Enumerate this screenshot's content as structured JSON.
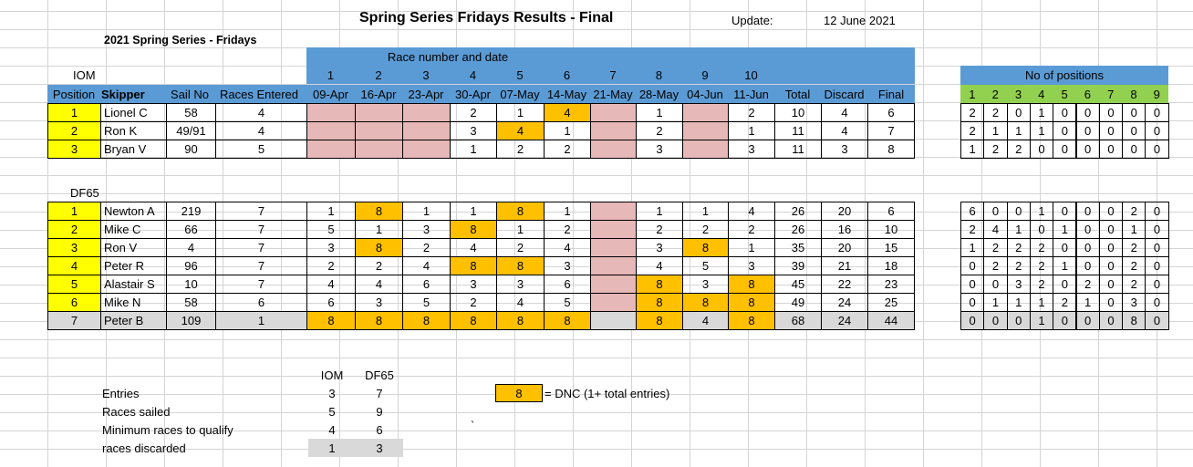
{
  "title": "Spring Series Fridays Results - Final",
  "update_label": "Update:",
  "update_value": "12 June 2021",
  "subtitle": "2021 Spring Series - Fridays",
  "race_header": "Race number and date",
  "race_numbers": [
    "1",
    "2",
    "3",
    "4",
    "5",
    "6",
    "7",
    "8",
    "9",
    "10"
  ],
  "race_dates": [
    "09-Apr",
    "16-Apr",
    "23-Apr",
    "30-Apr",
    "07-May",
    "14-May",
    "21-May",
    "28-May",
    "04-Jun",
    "11-Jun"
  ],
  "col_headers": {
    "position": "Position",
    "skipper": "Skipper",
    "sail_no": "Sail No",
    "races_entered": "Races Entered",
    "total": "Total",
    "discard": "Discard",
    "final": "Final"
  },
  "positions_header": "No of positions",
  "positions_cols": [
    "1",
    "2",
    "3",
    "4",
    "5",
    "6",
    "7",
    "8",
    "9"
  ],
  "iom": {
    "label": "IOM",
    "rows": [
      {
        "pos": "1",
        "skipper": "Lionel C",
        "sail": "58",
        "entered": "4",
        "races": [
          "",
          "",
          "",
          "2",
          "1",
          "4",
          "",
          "1",
          "",
          "2"
        ],
        "styles": [
          "p",
          "p",
          "p",
          "",
          "",
          "o",
          "p",
          "",
          "p",
          ""
        ],
        "total": "10",
        "discard": "4",
        "final": "6",
        "counts": [
          "2",
          "2",
          "0",
          "1",
          "0",
          "0",
          "0",
          "0",
          "0"
        ]
      },
      {
        "pos": "2",
        "skipper": "Ron K",
        "sail": "49/91",
        "entered": "4",
        "races": [
          "",
          "",
          "",
          "3",
          "4",
          "1",
          "",
          "2",
          "",
          "1"
        ],
        "styles": [
          "p",
          "p",
          "p",
          "",
          "o",
          "",
          "p",
          "",
          "p",
          ""
        ],
        "total": "11",
        "discard": "4",
        "final": "7",
        "counts": [
          "2",
          "1",
          "1",
          "1",
          "0",
          "0",
          "0",
          "0",
          "0"
        ]
      },
      {
        "pos": "3",
        "skipper": "Bryan V",
        "sail": "90",
        "entered": "5",
        "races": [
          "",
          "",
          "",
          "1",
          "2",
          "2",
          "",
          "3",
          "",
          "3"
        ],
        "styles": [
          "p",
          "p",
          "p",
          "",
          "",
          "",
          "p",
          "",
          "p",
          ""
        ],
        "total": "11",
        "discard": "3",
        "final": "8",
        "counts": [
          "1",
          "2",
          "2",
          "0",
          "0",
          "0",
          "0",
          "0",
          "0"
        ]
      }
    ]
  },
  "df65": {
    "label": "DF65",
    "rows": [
      {
        "pos": "1",
        "skipper": "Newton A",
        "sail": "219",
        "entered": "7",
        "races": [
          "1",
          "8",
          "1",
          "1",
          "8",
          "1",
          "",
          "1",
          "1",
          "4"
        ],
        "styles": [
          "",
          "o",
          "",
          "",
          "o",
          "",
          "p",
          "",
          "",
          ""
        ],
        "total": "26",
        "discard": "20",
        "final": "6",
        "counts": [
          "6",
          "0",
          "0",
          "1",
          "0",
          "0",
          "0",
          "2",
          "0"
        ]
      },
      {
        "pos": "2",
        "skipper": "Mike C",
        "sail": "66",
        "entered": "7",
        "races": [
          "5",
          "1",
          "3",
          "8",
          "1",
          "2",
          "",
          "2",
          "2",
          "2"
        ],
        "styles": [
          "",
          "",
          "",
          "o",
          "",
          "",
          "p",
          "",
          "",
          ""
        ],
        "total": "26",
        "discard": "16",
        "final": "10",
        "counts": [
          "2",
          "4",
          "1",
          "0",
          "1",
          "0",
          "0",
          "1",
          "0"
        ]
      },
      {
        "pos": "3",
        "skipper": "Ron V",
        "sail": "4",
        "entered": "7",
        "races": [
          "3",
          "8",
          "2",
          "4",
          "2",
          "4",
          "",
          "3",
          "8",
          "1"
        ],
        "styles": [
          "",
          "o",
          "",
          "",
          "",
          "",
          "p",
          "",
          "o",
          ""
        ],
        "total": "35",
        "discard": "20",
        "final": "15",
        "counts": [
          "1",
          "2",
          "2",
          "2",
          "0",
          "0",
          "0",
          "2",
          "0"
        ]
      },
      {
        "pos": "4",
        "skipper": "Peter R",
        "sail": "96",
        "entered": "7",
        "races": [
          "2",
          "2",
          "4",
          "8",
          "8",
          "3",
          "",
          "4",
          "5",
          "3"
        ],
        "styles": [
          "",
          "",
          "",
          "o",
          "o",
          "",
          "p",
          "",
          "",
          ""
        ],
        "total": "39",
        "discard": "21",
        "final": "18",
        "counts": [
          "0",
          "2",
          "2",
          "2",
          "1",
          "0",
          "0",
          "2",
          "0"
        ]
      },
      {
        "pos": "5",
        "skipper": "Alastair S",
        "sail": "10",
        "entered": "7",
        "races": [
          "4",
          "4",
          "6",
          "3",
          "3",
          "6",
          "",
          "8",
          "3",
          "8"
        ],
        "styles": [
          "",
          "",
          "",
          "",
          "",
          "",
          "p",
          "o",
          "",
          "o"
        ],
        "total": "45",
        "discard": "22",
        "final": "23",
        "counts": [
          "0",
          "0",
          "3",
          "2",
          "0",
          "2",
          "0",
          "2",
          "0"
        ]
      },
      {
        "pos": "6",
        "skipper": "Mike N",
        "sail": "58",
        "entered": "6",
        "races": [
          "6",
          "3",
          "5",
          "2",
          "4",
          "5",
          "",
          "8",
          "8",
          "8"
        ],
        "styles": [
          "",
          "",
          "",
          "",
          "",
          "",
          "p",
          "o",
          "o",
          "o"
        ],
        "total": "49",
        "discard": "24",
        "final": "25",
        "counts": [
          "0",
          "1",
          "1",
          "1",
          "2",
          "1",
          "0",
          "3",
          "0"
        ]
      },
      {
        "pos": "7",
        "skipper": "Peter B",
        "sail": "109",
        "entered": "1",
        "races": [
          "8",
          "8",
          "8",
          "8",
          "8",
          "8",
          "",
          "8",
          "4",
          "8"
        ],
        "styles": [
          "o",
          "o",
          "o",
          "o",
          "o",
          "o",
          "g",
          "o",
          "g",
          "o"
        ],
        "total": "68",
        "discard": "24",
        "final": "44",
        "counts": [
          "0",
          "0",
          "0",
          "1",
          "0",
          "0",
          "0",
          "8",
          "0"
        ],
        "grey": true
      }
    ]
  },
  "summary": {
    "col_iom": "IOM",
    "col_df65": "DF65",
    "rows": [
      {
        "label": "Entries",
        "iom": "3",
        "df65": "7"
      },
      {
        "label": "Races sailed",
        "iom": "5",
        "df65": "9"
      },
      {
        "label": "Minimum races to qualify",
        "iom": "4",
        "df65": "6"
      },
      {
        "label": "races discarded",
        "iom": "1",
        "df65": "3"
      }
    ]
  },
  "legend": {
    "value": "8",
    "text": "= DNC (1+ total entries)"
  },
  "stray_mark": "`",
  "colors": {
    "header_blue": "#5b9bd5",
    "position_yellow": "#ffff00",
    "dnc_orange": "#ffc000",
    "absent_pink": "#e6b8b7",
    "grey": "#d9d9d9",
    "green": "#92d050"
  }
}
